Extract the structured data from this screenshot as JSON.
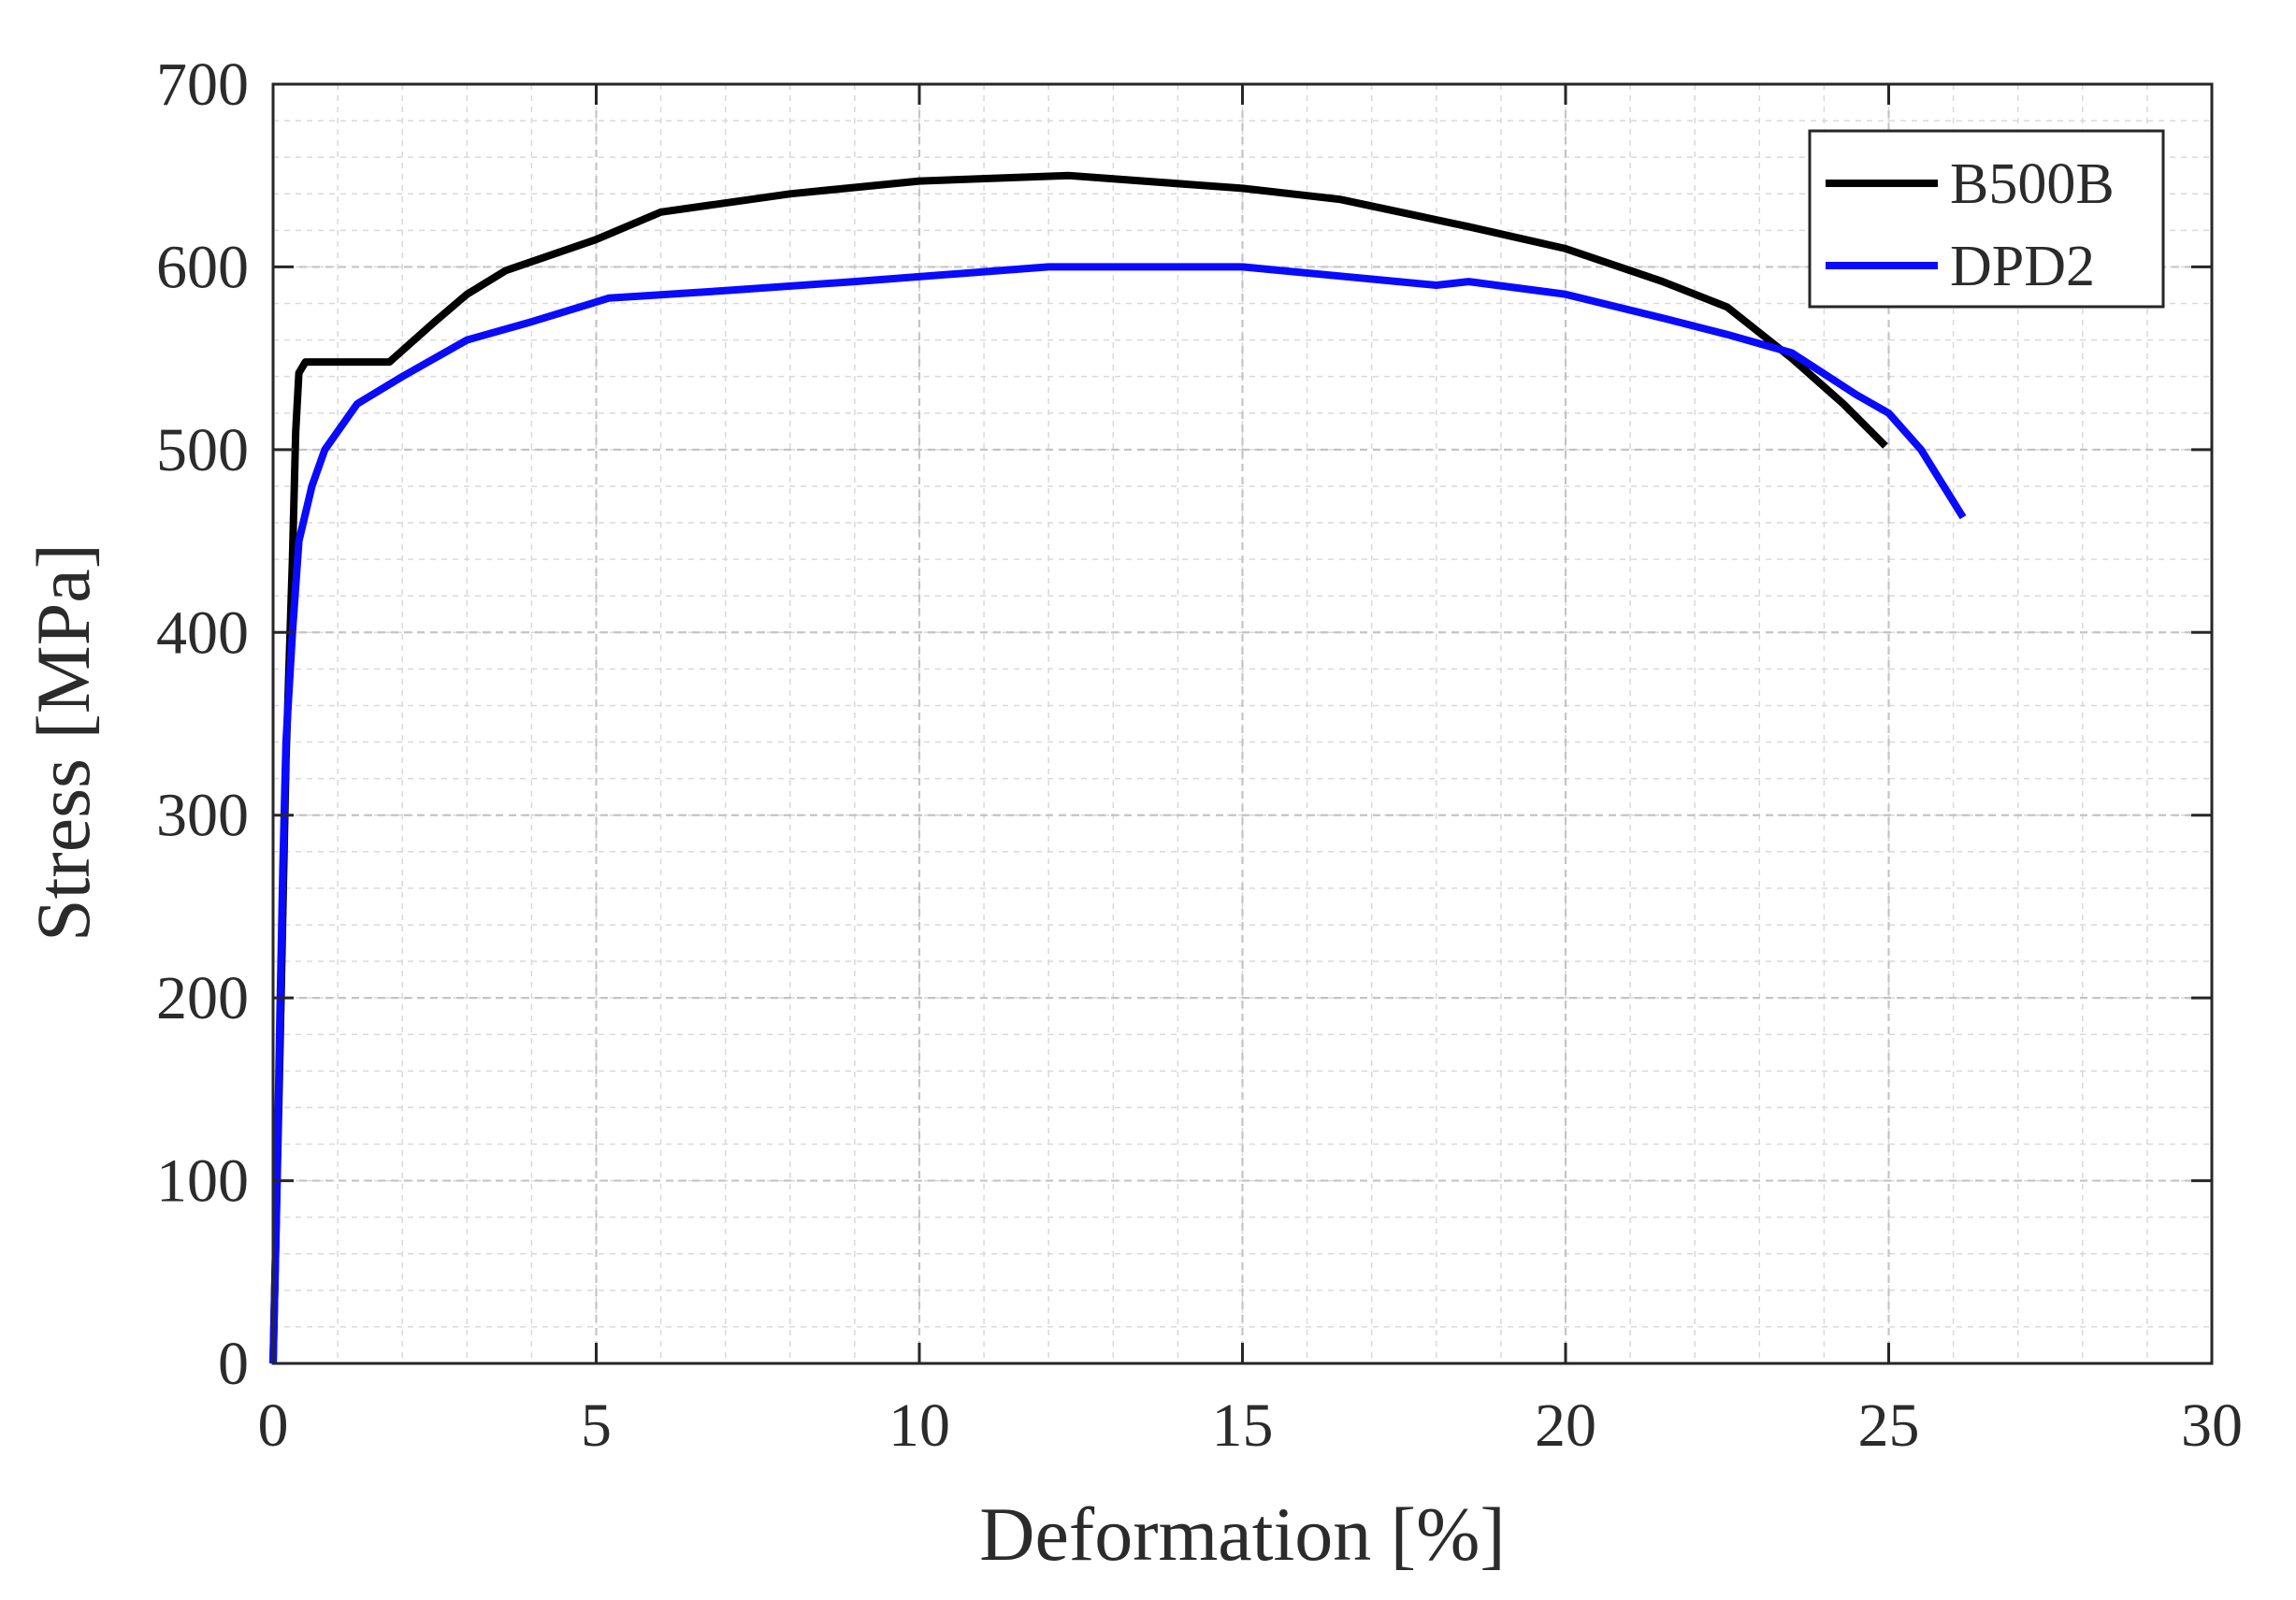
{
  "chart_data": {
    "type": "line",
    "xlabel": "Deformation [%]",
    "ylabel": "Stress [MPa]",
    "xlim": [
      0,
      30
    ],
    "ylim": [
      0,
      700
    ],
    "xticks": [
      0,
      5,
      10,
      15,
      20,
      25,
      30
    ],
    "yticks": [
      0,
      100,
      200,
      300,
      400,
      500,
      600,
      700
    ],
    "xtick_labels": [
      "0",
      "5",
      "10",
      "15",
      "20",
      "25",
      "30"
    ],
    "ytick_labels": [
      "0",
      "100",
      "200",
      "300",
      "400",
      "500",
      "600",
      "700"
    ],
    "minor_per_major_x": 5,
    "minor_per_major_y": 5,
    "grid": "major and minor, dashed",
    "legend_position": "top-right",
    "series": [
      {
        "name": "B500B",
        "color": "#000000",
        "x": [
          0.0,
          0.1,
          0.2,
          0.3,
          0.35,
          0.4,
          0.5,
          1.0,
          1.8,
          2.5,
          3.0,
          3.6,
          5.0,
          6.0,
          8.0,
          10.0,
          12.3,
          15.0,
          16.5,
          18.5,
          20.0,
          21.5,
          22.5,
          23.5,
          24.3,
          24.95
        ],
        "y": [
          0,
          160,
          330,
          440,
          510,
          542,
          548,
          548,
          548,
          570,
          585,
          598,
          615,
          630,
          640,
          647,
          650,
          643,
          637,
          622,
          610,
          592,
          578,
          550,
          525,
          502
        ]
      },
      {
        "name": "DPD2",
        "color": "#0a0aff",
        "x": [
          0.0,
          0.05,
          0.1,
          0.15,
          0.2,
          0.3,
          0.4,
          0.6,
          0.8,
          1.3,
          2.0,
          3.0,
          4.0,
          5.2,
          7.0,
          9.0,
          12.0,
          13.0,
          15.0,
          16.5,
          18.0,
          18.5,
          20.0,
          21.5,
          22.5,
          23.5,
          24.5,
          25.0,
          25.5,
          26.15
        ],
        "y": [
          0,
          80,
          180,
          270,
          340,
          400,
          450,
          480,
          500,
          525,
          540,
          560,
          570,
          583,
          587,
          592,
          600,
          600,
          600,
          595,
          590,
          592,
          585,
          572,
          563,
          553,
          530,
          520,
          500,
          463
        ]
      }
    ]
  }
}
